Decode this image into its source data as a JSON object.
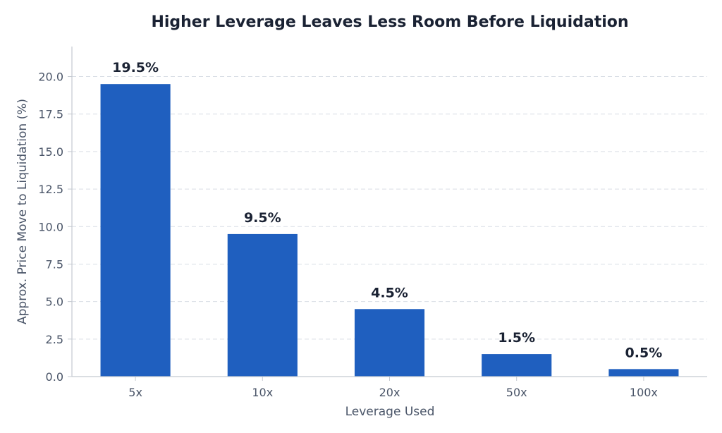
{
  "chart_data": {
    "type": "bar",
    "title": "Higher Leverage Leaves Less Room Before Liquidation",
    "xlabel": "Leverage Used",
    "ylabel": "Approx. Price Move to Liquidation (%)",
    "categories": [
      "5x",
      "10x",
      "20x",
      "50x",
      "100x"
    ],
    "values": [
      19.5,
      9.5,
      4.5,
      1.5,
      0.5
    ],
    "data_labels": [
      "19.5%",
      "9.5%",
      "4.5%",
      "1.5%",
      "0.5%"
    ],
    "ylim": [
      0,
      22
    ],
    "yticks": [
      0.0,
      2.5,
      5.0,
      7.5,
      10.0,
      12.5,
      15.0,
      17.5,
      20.0
    ],
    "ytick_labels": [
      "0.0",
      "2.5",
      "5.0",
      "7.5",
      "10.0",
      "12.5",
      "15.0",
      "17.5",
      "20.0"
    ],
    "grid": "horizontal dashed",
    "legend": "none",
    "bar_color": "#1f5fbf"
  }
}
